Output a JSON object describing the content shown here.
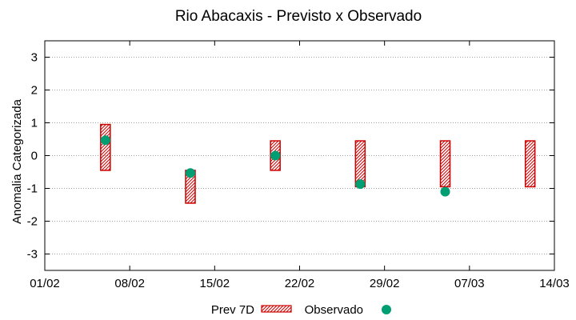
{
  "chart_data": {
    "type": "range-bar+scatter",
    "title": "Rio Abacaxis - Previsto x Observado",
    "xlabel": "",
    "ylabel": "Anomalia Categorizada",
    "x_tick_labels": [
      "01/02",
      "08/02",
      "15/02",
      "22/02",
      "29/02",
      "07/03",
      "14/03"
    ],
    "x_ticks_day": [
      0,
      7,
      14,
      21,
      28,
      35,
      42
    ],
    "xlim_day": [
      0,
      42
    ],
    "y_ticks": [
      -3,
      -2,
      -1,
      0,
      1,
      2,
      3
    ],
    "ylim": [
      -3.5,
      3.5
    ],
    "grid": true,
    "legend_position": "bottom",
    "series": [
      {
        "name": "Prev 7D",
        "kind": "range-bar",
        "color": "#cc0000",
        "points": [
          {
            "x_day": 5,
            "low": -0.45,
            "high": 0.95
          },
          {
            "x_day": 12,
            "low": -1.45,
            "high": -0.45
          },
          {
            "x_day": 19,
            "low": -0.45,
            "high": 0.45
          },
          {
            "x_day": 26,
            "low": -0.95,
            "high": 0.45
          },
          {
            "x_day": 33,
            "low": -0.95,
            "high": 0.45
          },
          {
            "x_day": 40,
            "low": -0.95,
            "high": 0.45
          }
        ]
      },
      {
        "name": "Observado",
        "kind": "scatter",
        "color": "#009e73",
        "points": [
          {
            "x_day": 5,
            "y": 0.47
          },
          {
            "x_day": 12,
            "y": -0.53
          },
          {
            "x_day": 19,
            "y": 0.0
          },
          {
            "x_day": 26,
            "y": -0.87
          },
          {
            "x_day": 33,
            "y": -1.1
          }
        ]
      }
    ]
  }
}
